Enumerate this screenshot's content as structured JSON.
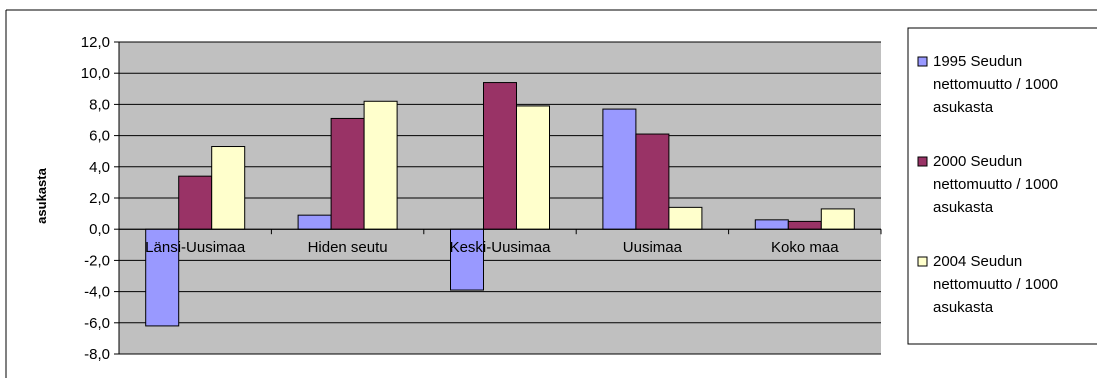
{
  "chart_data": {
    "type": "bar",
    "title": "",
    "xlabel": "",
    "ylabel": "asukasta",
    "ylim": [
      -8,
      12
    ],
    "yticks": [
      "12,0",
      "10,0",
      "8,0",
      "6,0",
      "4,0",
      "2,0",
      "0,0",
      "-2,0",
      "-4,0",
      "-6,0",
      "-8,0"
    ],
    "grid": true,
    "plot_background": "#c0c0c0",
    "legend_position": "right",
    "categories": [
      "Länsi-Uusimaa",
      "Hiden seutu",
      "Keski-Uusimaa",
      "Uusimaa",
      "Koko maa"
    ],
    "series": [
      {
        "name": "1995 Seudun nettomuutto / 1000 asukasta",
        "color": "#9999ff",
        "values": [
          -6.2,
          0.9,
          -3.9,
          7.7,
          0.6
        ]
      },
      {
        "name": "2000 Seudun nettomuutto / 1000 asukasta",
        "color": "#993366",
        "values": [
          3.4,
          7.1,
          9.4,
          6.1,
          0.5
        ]
      },
      {
        "name": "2004 Seudun nettomuutto / 1000 asukasta",
        "color": "#ffffcc",
        "values": [
          5.3,
          8.2,
          7.9,
          1.4,
          1.3
        ]
      }
    ]
  }
}
